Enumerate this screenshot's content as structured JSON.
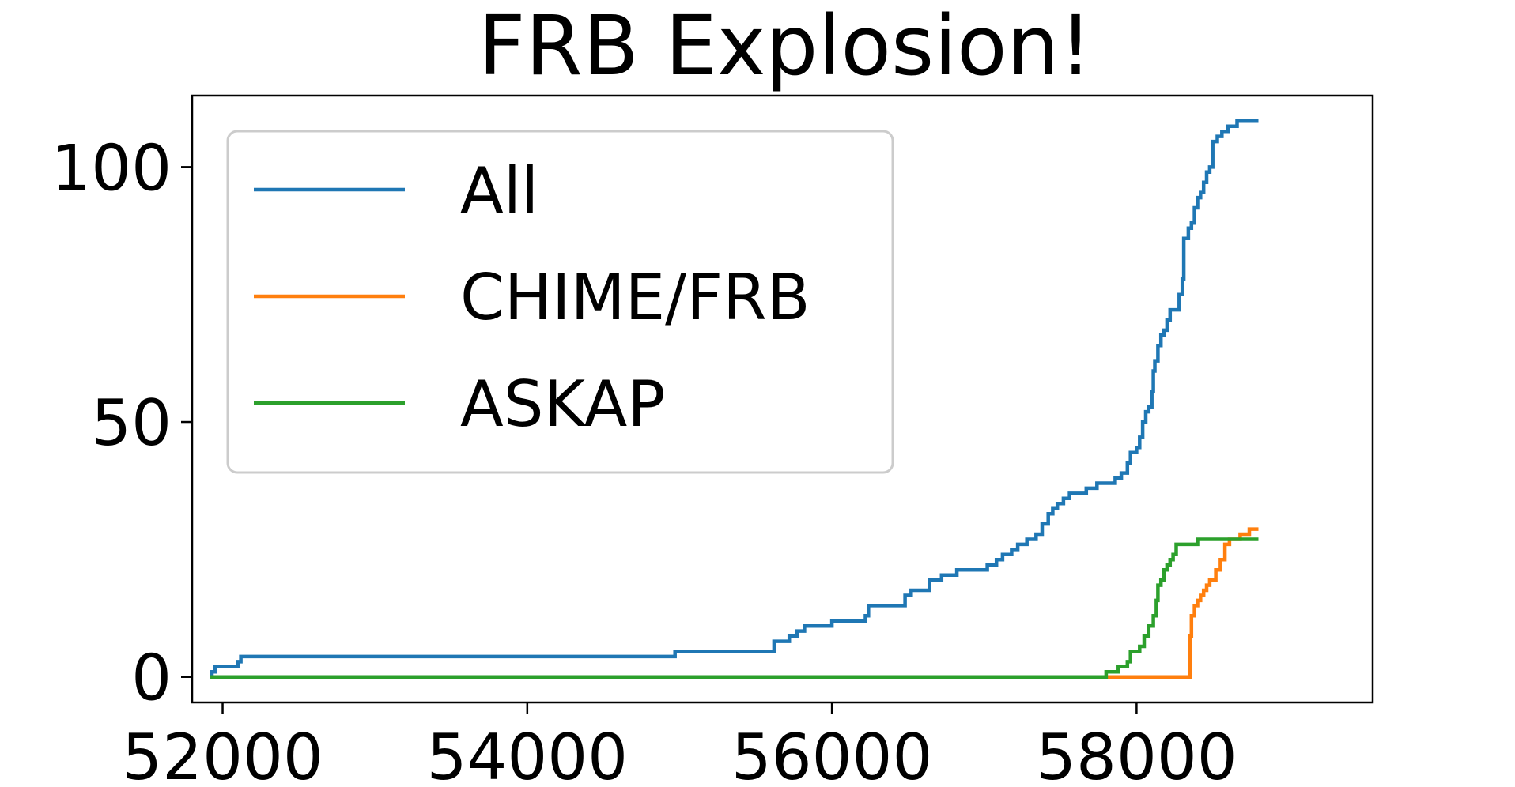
{
  "chart_data": {
    "type": "line",
    "title": "FRB Explosion!",
    "xlabel": "",
    "ylabel": "",
    "xlim": [
      51800,
      59550
    ],
    "ylim": [
      -5,
      114
    ],
    "xticks": [
      52000,
      54000,
      56000,
      58000
    ],
    "xtick_labels": [
      "52000",
      "54000",
      "56000",
      "58000"
    ],
    "yticks": [
      0,
      50,
      100
    ],
    "ytick_labels": [
      "0",
      "50",
      "100"
    ],
    "grid": false,
    "legend_position": "top-left",
    "step": true,
    "series": [
      {
        "name": "All",
        "color": "#1f77b4",
        "points": [
          [
            51920,
            0
          ],
          [
            51930,
            1
          ],
          [
            51950,
            2
          ],
          [
            52100,
            3
          ],
          [
            52120,
            4
          ],
          [
            54950,
            4
          ],
          [
            54970,
            5
          ],
          [
            55600,
            5
          ],
          [
            55620,
            7
          ],
          [
            55720,
            8
          ],
          [
            55770,
            9
          ],
          [
            55820,
            10
          ],
          [
            55980,
            10
          ],
          [
            56000,
            11
          ],
          [
            56200,
            11
          ],
          [
            56220,
            12
          ],
          [
            56240,
            14
          ],
          [
            56460,
            14
          ],
          [
            56480,
            16
          ],
          [
            56520,
            17
          ],
          [
            56620,
            17
          ],
          [
            56640,
            19
          ],
          [
            56720,
            20
          ],
          [
            56800,
            20
          ],
          [
            56820,
            21
          ],
          [
            57000,
            21
          ],
          [
            57020,
            22
          ],
          [
            57080,
            23
          ],
          [
            57120,
            24
          ],
          [
            57180,
            25
          ],
          [
            57220,
            26
          ],
          [
            57280,
            27
          ],
          [
            57340,
            28
          ],
          [
            57380,
            30
          ],
          [
            57420,
            32
          ],
          [
            57450,
            33
          ],
          [
            57480,
            34
          ],
          [
            57520,
            35
          ],
          [
            57560,
            36
          ],
          [
            57650,
            36
          ],
          [
            57670,
            37
          ],
          [
            57740,
            38
          ],
          [
            57840,
            38
          ],
          [
            57860,
            39
          ],
          [
            57900,
            40
          ],
          [
            57940,
            42
          ],
          [
            57960,
            44
          ],
          [
            58000,
            45
          ],
          [
            58020,
            47
          ],
          [
            58040,
            50
          ],
          [
            58060,
            52
          ],
          [
            58080,
            53
          ],
          [
            58100,
            56
          ],
          [
            58110,
            60
          ],
          [
            58120,
            62
          ],
          [
            58140,
            65
          ],
          [
            58160,
            67
          ],
          [
            58180,
            68
          ],
          [
            58200,
            70
          ],
          [
            58220,
            72
          ],
          [
            58260,
            72
          ],
          [
            58280,
            75
          ],
          [
            58300,
            78
          ],
          [
            58310,
            86
          ],
          [
            58340,
            88
          ],
          [
            58360,
            89
          ],
          [
            58380,
            92
          ],
          [
            58400,
            94
          ],
          [
            58420,
            95
          ],
          [
            58440,
            97
          ],
          [
            58460,
            99
          ],
          [
            58480,
            100
          ],
          [
            58500,
            105
          ],
          [
            58530,
            106
          ],
          [
            58560,
            107
          ],
          [
            58600,
            108
          ],
          [
            58660,
            109
          ],
          [
            58800,
            109
          ]
        ]
      },
      {
        "name": "CHIME/FRB",
        "color": "#ff7f0e",
        "points": [
          [
            57800,
            0
          ],
          [
            58340,
            0
          ],
          [
            58350,
            8
          ],
          [
            58360,
            12
          ],
          [
            58380,
            14
          ],
          [
            58400,
            15
          ],
          [
            58420,
            16
          ],
          [
            58440,
            17
          ],
          [
            58460,
            18
          ],
          [
            58480,
            19
          ],
          [
            58520,
            21
          ],
          [
            58550,
            23
          ],
          [
            58580,
            26
          ],
          [
            58610,
            27
          ],
          [
            58660,
            27
          ],
          [
            58680,
            28
          ],
          [
            58740,
            29
          ],
          [
            58800,
            29
          ]
        ]
      },
      {
        "name": "ASKAP",
        "color": "#2ca02c",
        "points": [
          [
            51920,
            0
          ],
          [
            57780,
            0
          ],
          [
            57800,
            1
          ],
          [
            57860,
            1
          ],
          [
            57880,
            2
          ],
          [
            57940,
            3
          ],
          [
            57960,
            5
          ],
          [
            58020,
            6
          ],
          [
            58050,
            8
          ],
          [
            58080,
            10
          ],
          [
            58110,
            12
          ],
          [
            58130,
            15
          ],
          [
            58140,
            18
          ],
          [
            58160,
            19
          ],
          [
            58180,
            21
          ],
          [
            58200,
            22
          ],
          [
            58220,
            23
          ],
          [
            58240,
            24
          ],
          [
            58260,
            26
          ],
          [
            58380,
            26
          ],
          [
            58400,
            27
          ],
          [
            58800,
            27
          ]
        ]
      }
    ]
  }
}
